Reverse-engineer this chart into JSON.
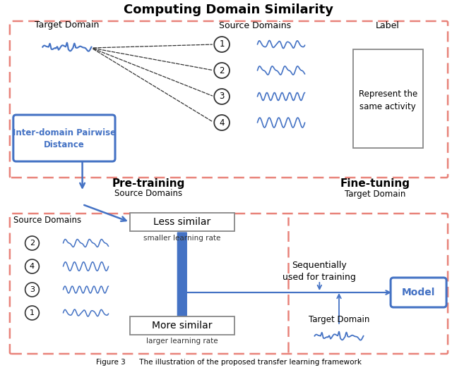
{
  "title": "Computing Domain Similarity",
  "caption": "Figure 3      The illustration of the proposed transfer learning framework",
  "bg_color": "#ffffff",
  "dash_box_color": "#e8837a",
  "blue_color": "#4472c4",
  "top_labels": {
    "target_domain": "Target Domain",
    "source_domains": "Source Domains",
    "label": "Label",
    "represent": "Represent the\nsame activity"
  },
  "source_numbers": [
    "1",
    "2",
    "3",
    "4"
  ],
  "inter_domain_text": "Inter-domain Pairwise\nDistance",
  "pretraining_title": "Pre-training",
  "pretraining_sub": "Source Domains",
  "finetuning_title": "Fine-tuning",
  "finetuning_sub": "Target Domain",
  "less_similar": "Less similar",
  "smaller_lr": "smaller learning rate",
  "larger_lr": "larger learning rate",
  "more_similar": "More similar",
  "sequentially_text": "Sequentially\nused for training",
  "model_text": "Model",
  "target_domain_bottom": "Target Domain",
  "source_domains_bottom": "Source Domains"
}
